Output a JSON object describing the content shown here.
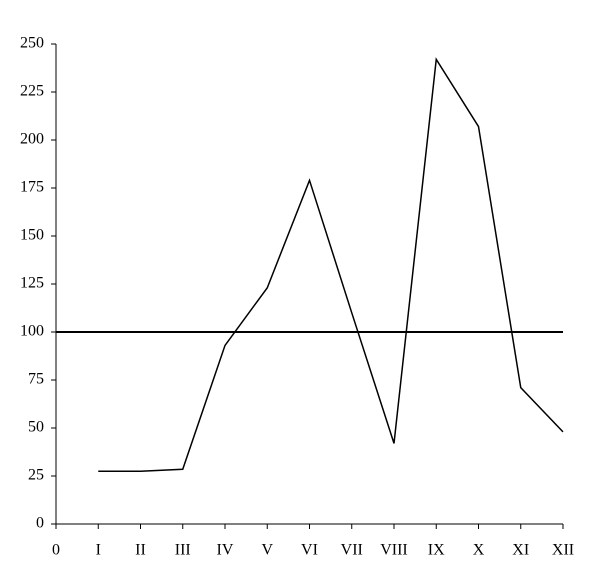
{
  "chart_data": {
    "type": "line",
    "categories": [
      "0",
      "I",
      "II",
      "III",
      "IV",
      "V",
      "VI",
      "VII",
      "VIII",
      "IX",
      "X",
      "XI",
      "XII"
    ],
    "values": [
      null,
      27.5,
      27.5,
      28.5,
      93,
      123,
      179,
      110,
      42,
      242,
      207,
      71,
      48
    ],
    "color": "#000000",
    "reference_line": 100,
    "ylim": [
      0,
      250
    ],
    "yticks": [
      0,
      25,
      50,
      75,
      100,
      125,
      150,
      175,
      200,
      225,
      250
    ]
  }
}
